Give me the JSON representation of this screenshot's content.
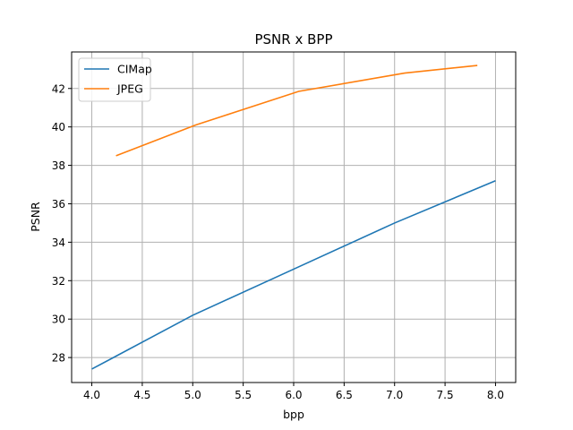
{
  "chart_data": {
    "type": "line",
    "title": "PSNR x BPP",
    "xlabel": "bpp",
    "ylabel": "PSNR",
    "xlim": [
      3.8,
      8.2
    ],
    "ylim": [
      26.7,
      43.9
    ],
    "xticks": [
      4.0,
      4.5,
      5.0,
      5.5,
      6.0,
      6.5,
      7.0,
      7.5,
      8.0
    ],
    "xtick_labels": [
      "4.0",
      "4.5",
      "5.0",
      "5.5",
      "6.0",
      "6.5",
      "7.0",
      "7.5",
      "8.0"
    ],
    "yticks": [
      28,
      30,
      32,
      34,
      36,
      38,
      40,
      42
    ],
    "ytick_labels": [
      "28",
      "30",
      "32",
      "34",
      "36",
      "38",
      "40",
      "42"
    ],
    "grid": true,
    "legend": "top-left",
    "series": [
      {
        "name": "CIMap",
        "color": "#1f77b4",
        "x": [
          4.0,
          5.0,
          6.0,
          7.0,
          8.0
        ],
        "y": [
          27.4,
          30.2,
          32.6,
          35.0,
          37.2
        ]
      },
      {
        "name": "JPEG",
        "color": "#ff7f0e",
        "x": [
          4.24,
          5.03,
          6.05,
          7.1,
          7.82
        ],
        "y": [
          38.5,
          40.1,
          41.85,
          42.8,
          43.2
        ]
      }
    ]
  }
}
